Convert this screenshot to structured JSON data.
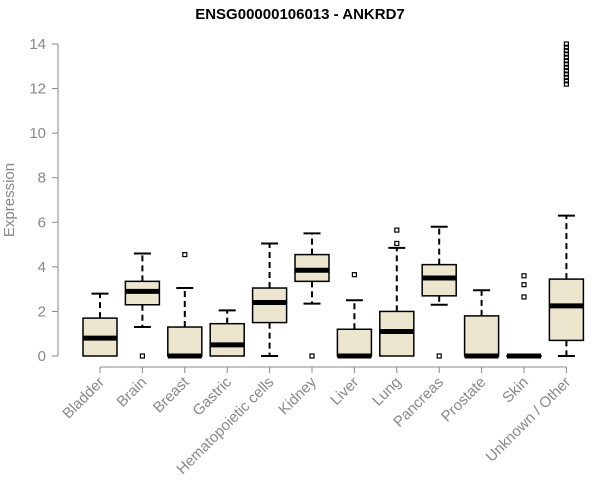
{
  "chart_data": {
    "type": "boxplot",
    "title": "ENSG00000106013 - ANKRD7",
    "xlabel": "",
    "ylabel": "Expression",
    "ylim": [
      0,
      14
    ],
    "yticks": [
      0,
      2,
      4,
      6,
      8,
      10,
      12,
      14
    ],
    "grid": false,
    "colors": {
      "box_fill": "#ede6cf",
      "box_stroke": "#000000",
      "axis": "#888888",
      "tick_text": "#888888"
    },
    "categories": [
      "Bladder",
      "Brain",
      "Breast",
      "Gastric",
      "Hematopoietic cells",
      "Kidney",
      "Liver",
      "Lung",
      "Pancreas",
      "Prostate",
      "Skin",
      "Unknown / Other"
    ],
    "boxes": [
      {
        "category": "Bladder",
        "min": 0,
        "q1": 0,
        "median": 0.8,
        "q3": 1.7,
        "max": 2.8,
        "outliers": []
      },
      {
        "category": "Brain",
        "min": 1.3,
        "q1": 2.3,
        "median": 2.9,
        "q3": 3.35,
        "max": 4.6,
        "outliers": [
          0
        ]
      },
      {
        "category": "Breast",
        "min": 0,
        "q1": 0,
        "median": 0,
        "q3": 1.3,
        "max": 3.05,
        "outliers": [
          4.55
        ]
      },
      {
        "category": "Gastric",
        "min": 0,
        "q1": 0,
        "median": 0.5,
        "q3": 1.45,
        "max": 2.05,
        "outliers": []
      },
      {
        "category": "Hematopoietic cells",
        "min": 0,
        "q1": 1.5,
        "median": 2.4,
        "q3": 3.05,
        "max": 5.05,
        "outliers": []
      },
      {
        "category": "Kidney",
        "min": 2.35,
        "q1": 3.35,
        "median": 3.85,
        "q3": 4.55,
        "max": 5.5,
        "outliers": [
          0
        ]
      },
      {
        "category": "Liver",
        "min": 0,
        "q1": 0,
        "median": 0,
        "q3": 1.2,
        "max": 2.5,
        "outliers": [
          3.65
        ]
      },
      {
        "category": "Lung",
        "min": 0,
        "q1": 0,
        "median": 1.1,
        "q3": 2.0,
        "max": 4.85,
        "outliers": [
          5.05,
          5.65
        ]
      },
      {
        "category": "Pancreas",
        "min": 2.3,
        "q1": 2.7,
        "median": 3.5,
        "q3": 4.1,
        "max": 5.8,
        "outliers": [
          0
        ]
      },
      {
        "category": "Prostate",
        "min": 0,
        "q1": 0,
        "median": 0,
        "q3": 1.8,
        "max": 2.95,
        "outliers": []
      },
      {
        "category": "Skin",
        "min": 0,
        "q1": 0,
        "median": 0,
        "q3": 0,
        "max": 0,
        "outliers": [
          2.65,
          3.2,
          3.6
        ]
      },
      {
        "category": "Unknown / Other",
        "min": 0,
        "q1": 0.7,
        "median": 2.25,
        "q3": 3.45,
        "max": 6.3,
        "outliers": [
          12.2,
          12.35,
          12.5,
          12.65,
          12.8,
          12.95,
          13.1,
          13.25,
          13.4,
          13.55,
          13.7,
          13.85,
          14.0
        ]
      }
    ]
  }
}
